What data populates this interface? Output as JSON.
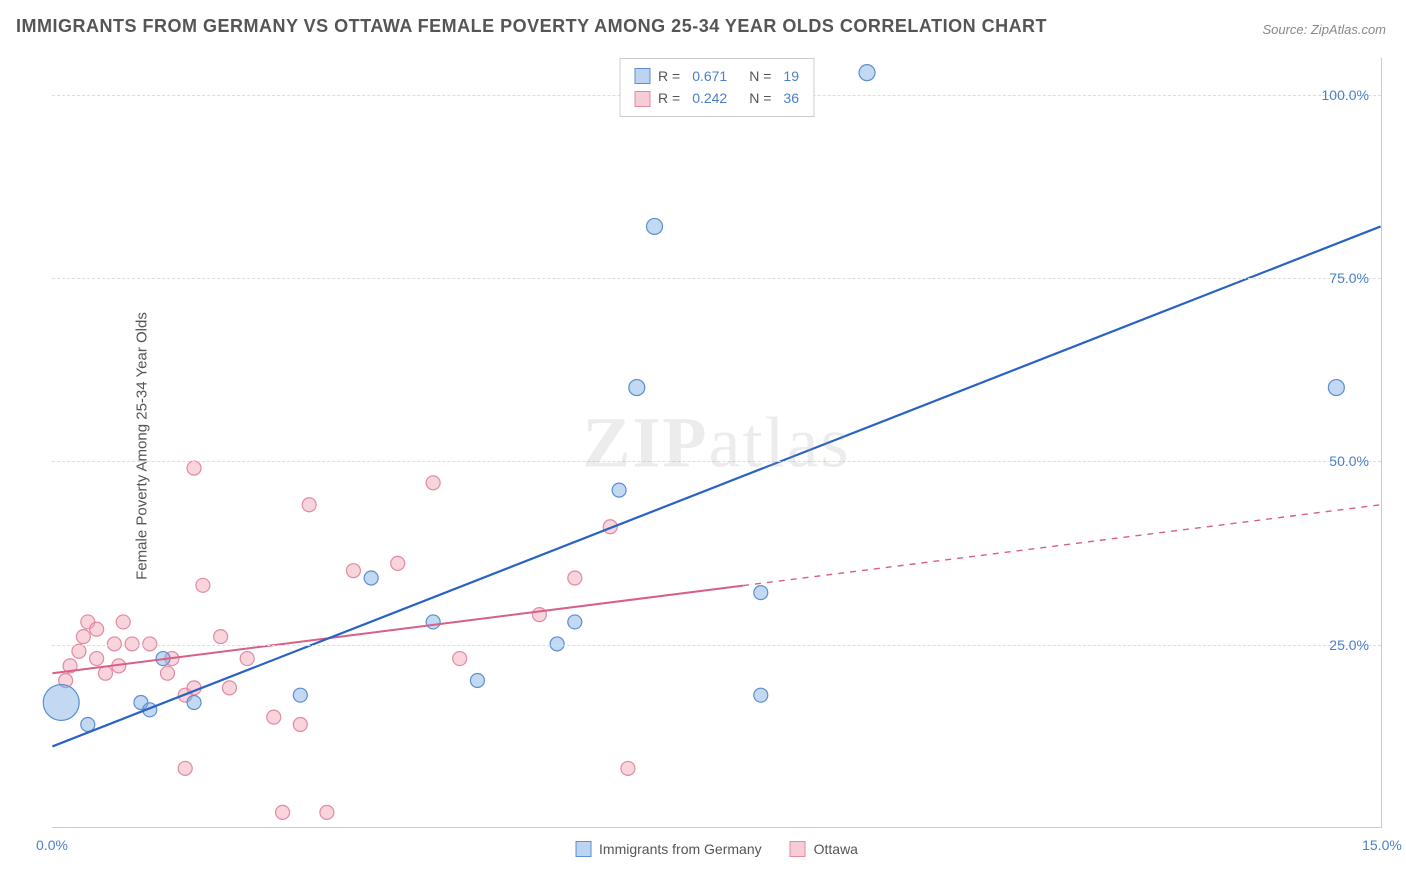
{
  "title": "IMMIGRANTS FROM GERMANY VS OTTAWA FEMALE POVERTY AMONG 25-34 YEAR OLDS CORRELATION CHART",
  "source": "Source: ZipAtlas.com",
  "y_axis_label": "Female Poverty Among 25-34 Year Olds",
  "watermark": "ZIPatlas",
  "chart": {
    "type": "scatter",
    "xlim": [
      0,
      15
    ],
    "ylim": [
      0,
      105
    ],
    "x_ticks": [
      {
        "v": 0,
        "label": "0.0%"
      },
      {
        "v": 15,
        "label": "15.0%"
      }
    ],
    "y_ticks": [
      {
        "v": 25,
        "label": "25.0%"
      },
      {
        "v": 50,
        "label": "50.0%"
      },
      {
        "v": 75,
        "label": "75.0%"
      },
      {
        "v": 100,
        "label": "100.0%"
      }
    ],
    "grid_color": "#dddddd",
    "plot_bg": "#ffffff",
    "label_color": "#4a7fc9",
    "series": [
      {
        "name": "Immigrants from Germany",
        "color_fill": "rgba(122,168,224,0.45)",
        "color_stroke": "#5a8fd0",
        "legend_swatch_fill": "#bcd4ef",
        "legend_swatch_stroke": "#5a8fd0",
        "r_value": "0.671",
        "n_value": "19",
        "trend": {
          "x1": 0,
          "y1": 11,
          "x2": 15,
          "y2": 82,
          "solid_until_x": 15,
          "stroke": "#2a62c4",
          "width": 2.2
        },
        "points": [
          {
            "x": 0.1,
            "y": 17,
            "r": 18
          },
          {
            "x": 0.4,
            "y": 14,
            "r": 7
          },
          {
            "x": 1.0,
            "y": 17,
            "r": 7
          },
          {
            "x": 1.1,
            "y": 16,
            "r": 7
          },
          {
            "x": 1.25,
            "y": 23,
            "r": 7
          },
          {
            "x": 1.6,
            "y": 17,
            "r": 7
          },
          {
            "x": 2.8,
            "y": 18,
            "r": 7
          },
          {
            "x": 3.6,
            "y": 34,
            "r": 7
          },
          {
            "x": 4.3,
            "y": 28,
            "r": 7
          },
          {
            "x": 4.8,
            "y": 20,
            "r": 7
          },
          {
            "x": 5.7,
            "y": 25,
            "r": 7
          },
          {
            "x": 5.9,
            "y": 28,
            "r": 7
          },
          {
            "x": 6.4,
            "y": 46,
            "r": 7
          },
          {
            "x": 6.8,
            "y": 82,
            "r": 8
          },
          {
            "x": 6.6,
            "y": 60,
            "r": 8
          },
          {
            "x": 8.0,
            "y": 18,
            "r": 7
          },
          {
            "x": 8.0,
            "y": 32,
            "r": 7
          },
          {
            "x": 9.2,
            "y": 103,
            "r": 8
          },
          {
            "x": 14.5,
            "y": 60,
            "r": 8
          }
        ]
      },
      {
        "name": "Ottawa",
        "color_fill": "rgba(240,160,180,0.45)",
        "color_stroke": "#e28aa0",
        "legend_swatch_fill": "#f6cdd7",
        "legend_swatch_stroke": "#e28aa0",
        "r_value": "0.242",
        "n_value": "36",
        "trend": {
          "x1": 0,
          "y1": 21,
          "x2": 15,
          "y2": 44,
          "solid_until_x": 7.8,
          "stroke": "#d85f86",
          "width": 2
        },
        "points": [
          {
            "x": 0.15,
            "y": 20,
            "r": 7
          },
          {
            "x": 0.2,
            "y": 22,
            "r": 7
          },
          {
            "x": 0.3,
            "y": 24,
            "r": 7
          },
          {
            "x": 0.35,
            "y": 26,
            "r": 7
          },
          {
            "x": 0.4,
            "y": 28,
            "r": 7
          },
          {
            "x": 0.5,
            "y": 23,
            "r": 7
          },
          {
            "x": 0.5,
            "y": 27,
            "r": 7
          },
          {
            "x": 0.6,
            "y": 21,
            "r": 7
          },
          {
            "x": 0.7,
            "y": 25,
            "r": 7
          },
          {
            "x": 0.75,
            "y": 22,
            "r": 7
          },
          {
            "x": 0.8,
            "y": 28,
            "r": 7
          },
          {
            "x": 0.9,
            "y": 25,
            "r": 7
          },
          {
            "x": 1.1,
            "y": 25,
            "r": 7
          },
          {
            "x": 1.3,
            "y": 21,
            "r": 7
          },
          {
            "x": 1.35,
            "y": 23,
            "r": 7
          },
          {
            "x": 1.5,
            "y": 8,
            "r": 7
          },
          {
            "x": 1.5,
            "y": 18,
            "r": 7
          },
          {
            "x": 1.6,
            "y": 19,
            "r": 7
          },
          {
            "x": 1.6,
            "y": 49,
            "r": 7
          },
          {
            "x": 1.7,
            "y": 33,
            "r": 7
          },
          {
            "x": 1.9,
            "y": 26,
            "r": 7
          },
          {
            "x": 2.0,
            "y": 19,
            "r": 7
          },
          {
            "x": 2.2,
            "y": 23,
            "r": 7
          },
          {
            "x": 2.5,
            "y": 15,
            "r": 7
          },
          {
            "x": 2.6,
            "y": 2,
            "r": 7
          },
          {
            "x": 2.8,
            "y": 14,
            "r": 7
          },
          {
            "x": 2.9,
            "y": 44,
            "r": 7
          },
          {
            "x": 3.1,
            "y": 2,
            "r": 7
          },
          {
            "x": 3.4,
            "y": 35,
            "r": 7
          },
          {
            "x": 3.9,
            "y": 36,
            "r": 7
          },
          {
            "x": 4.3,
            "y": 47,
            "r": 7
          },
          {
            "x": 4.6,
            "y": 23,
            "r": 7
          },
          {
            "x": 5.5,
            "y": 29,
            "r": 7
          },
          {
            "x": 5.9,
            "y": 34,
            "r": 7
          },
          {
            "x": 6.3,
            "y": 41,
            "r": 7
          },
          {
            "x": 6.5,
            "y": 8,
            "r": 7
          }
        ]
      }
    ]
  },
  "x_legend": [
    {
      "label": "Immigrants from Germany",
      "fill": "#bcd4ef",
      "stroke": "#5a8fd0"
    },
    {
      "label": "Ottawa",
      "fill": "#f6cdd7",
      "stroke": "#e28aa0"
    }
  ]
}
